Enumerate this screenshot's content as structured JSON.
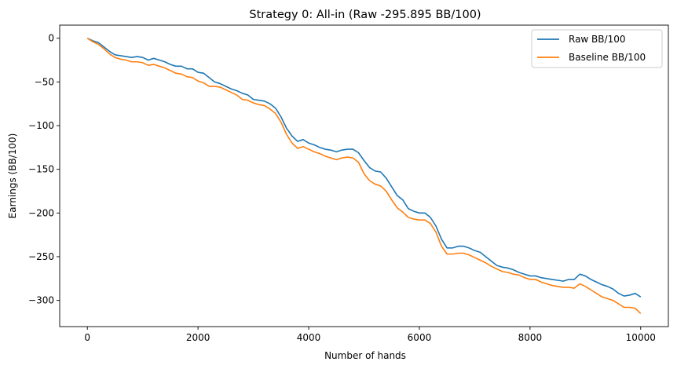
{
  "chart_data": {
    "type": "line",
    "title": "Strategy 0: All-in (Raw -295.895 BB/100)",
    "xlabel": "Number of hands",
    "ylabel": "Earnings (BB/100)",
    "xlim": [
      -500,
      10500
    ],
    "ylim": [
      -330,
      15
    ],
    "xticks": [
      0,
      2000,
      4000,
      6000,
      8000,
      10000
    ],
    "yticks": [
      0,
      -50,
      -100,
      -150,
      -200,
      -250,
      -300
    ],
    "grid": false,
    "legend_position": "top-right",
    "series": [
      {
        "name": "Raw BB/100",
        "color": "#1f77b4",
        "x": [
          0,
          100,
          200,
          300,
          400,
          500,
          600,
          700,
          800,
          900,
          1000,
          1100,
          1200,
          1300,
          1400,
          1500,
          1600,
          1700,
          1800,
          1900,
          2000,
          2100,
          2200,
          2300,
          2400,
          2500,
          2600,
          2700,
          2800,
          2900,
          3000,
          3100,
          3200,
          3300,
          3400,
          3500,
          3600,
          3700,
          3800,
          3900,
          4000,
          4100,
          4200,
          4300,
          4400,
          4500,
          4600,
          4700,
          4800,
          4900,
          5000,
          5100,
          5200,
          5300,
          5400,
          5500,
          5600,
          5700,
          5800,
          5900,
          6000,
          6100,
          6200,
          6300,
          6400,
          6500,
          6600,
          6700,
          6800,
          6900,
          7000,
          7100,
          7200,
          7300,
          7400,
          7500,
          7600,
          7700,
          7800,
          7900,
          8000,
          8100,
          8200,
          8300,
          8400,
          8500,
          8600,
          8700,
          8800,
          8900,
          9000,
          9100,
          9200,
          9300,
          9400,
          9500,
          9600,
          9700,
          9800,
          9900,
          10000
        ],
        "y": [
          0,
          -3,
          -5,
          -10,
          -15,
          -19,
          -20,
          -21,
          -22,
          -21,
          -22,
          -25,
          -23,
          -25,
          -27,
          -30,
          -32,
          -32,
          -35,
          -35,
          -39,
          -40,
          -45,
          -50,
          -52,
          -55,
          -58,
          -60,
          -63,
          -65,
          -70,
          -71,
          -72,
          -75,
          -80,
          -90,
          -103,
          -112,
          -118,
          -116,
          -120,
          -122,
          -125,
          -127,
          -128,
          -130,
          -128,
          -127,
          -127,
          -131,
          -140,
          -148,
          -152,
          -153,
          -160,
          -170,
          -180,
          -185,
          -195,
          -198,
          -200,
          -200,
          -205,
          -215,
          -230,
          -240,
          -240,
          -238,
          -238,
          -240,
          -243,
          -245,
          -250,
          -255,
          -260,
          -262,
          -263,
          -265,
          -268,
          -270,
          -272,
          -272,
          -274,
          -275,
          -276,
          -277,
          -278,
          -276,
          -276,
          -270,
          -272,
          -276,
          -279,
          -282,
          -284,
          -287,
          -292,
          -295,
          -294,
          -292,
          -296
        ]
      },
      {
        "name": "Baseline BB/100",
        "color": "#ff7f0e",
        "x": [
          0,
          100,
          200,
          300,
          400,
          500,
          600,
          700,
          800,
          900,
          1000,
          1100,
          1200,
          1300,
          1400,
          1500,
          1600,
          1700,
          1800,
          1900,
          2000,
          2100,
          2200,
          2300,
          2400,
          2500,
          2600,
          2700,
          2800,
          2900,
          3000,
          3100,
          3200,
          3300,
          3400,
          3500,
          3600,
          3700,
          3800,
          3900,
          4000,
          4100,
          4200,
          4300,
          4400,
          4500,
          4600,
          4700,
          4800,
          4900,
          5000,
          5100,
          5200,
          5300,
          5400,
          5500,
          5600,
          5700,
          5800,
          5900,
          6000,
          6100,
          6200,
          6300,
          6400,
          6500,
          6600,
          6700,
          6800,
          6900,
          7000,
          7100,
          7200,
          7300,
          7400,
          7500,
          7600,
          7700,
          7800,
          7900,
          8000,
          8100,
          8200,
          8300,
          8400,
          8500,
          8600,
          8700,
          8800,
          8900,
          9000,
          9100,
          9200,
          9300,
          9400,
          9500,
          9600,
          9700,
          9800,
          9900,
          10000
        ],
        "y": [
          0,
          -4,
          -7,
          -12,
          -18,
          -22,
          -24,
          -25,
          -27,
          -27,
          -28,
          -31,
          -30,
          -32,
          -34,
          -37,
          -40,
          -41,
          -44,
          -45,
          -49,
          -51,
          -55,
          -55,
          -56,
          -59,
          -62,
          -65,
          -70,
          -71,
          -74,
          -76,
          -77,
          -81,
          -86,
          -96,
          -110,
          -120,
          -126,
          -124,
          -127,
          -130,
          -132,
          -135,
          -137,
          -139,
          -137,
          -136,
          -137,
          -142,
          -155,
          -163,
          -167,
          -169,
          -175,
          -185,
          -194,
          -199,
          -205,
          -207,
          -208,
          -208,
          -212,
          -222,
          -238,
          -247,
          -247,
          -246,
          -246,
          -248,
          -251,
          -254,
          -257,
          -261,
          -264,
          -267,
          -268,
          -270,
          -271,
          -274,
          -276,
          -276,
          -279,
          -281,
          -283,
          -284,
          -285,
          -285,
          -286,
          -281,
          -284,
          -288,
          -292,
          -296,
          -298,
          -300,
          -304,
          -308,
          -308,
          -309,
          -315
        ]
      }
    ]
  }
}
